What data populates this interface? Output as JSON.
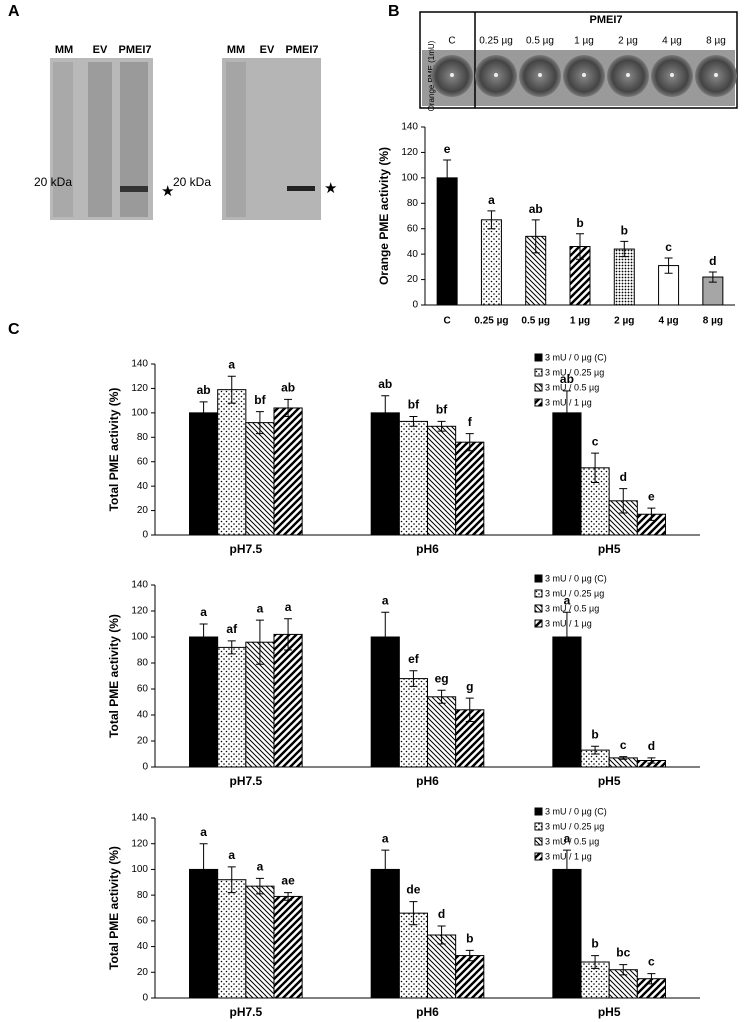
{
  "panel_labels": [
    "A",
    "B",
    "C"
  ],
  "gels": [
    {
      "lanes": [
        "MM",
        "EV",
        "PMEI7"
      ],
      "marker": "20 kDa",
      "star": "★"
    },
    {
      "lanes": [
        "MM",
        "EV",
        "PMEI7"
      ],
      "marker": "20 kDa",
      "star": "★"
    }
  ],
  "plate": {
    "header": "PMEI7",
    "side_label": "Orange PME (1mU)",
    "wells": [
      "C",
      "0.25 µg",
      "0.5 µg",
      "1 µg",
      "2 µg",
      "4 µg",
      "8 µg"
    ]
  },
  "chart_data": [
    {
      "type": "bar",
      "ylabel": "Orange PME activity (%)",
      "categories": [
        "C",
        "0.25 µg",
        "0.5 µg",
        "1 µg",
        "2 µg",
        "4 µg",
        "8 µg"
      ],
      "values": [
        100,
        67,
        54,
        46,
        44,
        31,
        22
      ],
      "errors": [
        14,
        7,
        13,
        10,
        6,
        6,
        4
      ],
      "letters": [
        "e",
        "a",
        "ab",
        "b",
        "b",
        "c",
        "d"
      ],
      "fills": [
        "#000000",
        "dots",
        "hatch-back",
        "hatch-bold",
        "dense-dots",
        "#ffffff",
        "#a6a6a6"
      ],
      "ylim": [
        0,
        140
      ],
      "yticks": [
        0,
        20,
        40,
        60,
        80,
        100,
        120,
        140
      ]
    },
    {
      "type": "grouped-bar",
      "ylabel": "Total PME activity (%)",
      "legend": "upper right",
      "categories": [
        "pH7.5",
        "pH6",
        "pH5"
      ],
      "series": [
        {
          "name": "3 mU / 0 µg (C)",
          "fill": "#000000",
          "values": [
            100,
            100,
            100
          ],
          "errors": [
            9,
            14,
            18
          ],
          "letters": [
            "ab",
            "ab",
            "ab"
          ]
        },
        {
          "name": "3 mU / 0.25 µg",
          "fill": "dots",
          "values": [
            119,
            93,
            55
          ],
          "errors": [
            11,
            4,
            12
          ],
          "letters": [
            "a",
            "bf",
            "c"
          ]
        },
        {
          "name": "3 mU / 0.5 µg",
          "fill": "hatch-back",
          "values": [
            92,
            89,
            28
          ],
          "errors": [
            9,
            4,
            10
          ],
          "letters": [
            "bf",
            "bf",
            "d"
          ]
        },
        {
          "name": "3 mU / 1 µg",
          "fill": "hatch-bold",
          "values": [
            104,
            76,
            17
          ],
          "errors": [
            7,
            7,
            5
          ],
          "letters": [
            "ab",
            "f",
            "e"
          ]
        }
      ],
      "ylim": [
        0,
        140
      ],
      "yticks": [
        0,
        20,
        40,
        60,
        80,
        100,
        120,
        140
      ]
    },
    {
      "type": "grouped-bar",
      "ylabel": "Total PME activity (%)",
      "legend": "upper right",
      "categories": [
        "pH7.5",
        "pH6",
        "pH5"
      ],
      "series": [
        {
          "name": "3 mU / 0 µg (C)",
          "fill": "#000000",
          "values": [
            100,
            100,
            100
          ],
          "errors": [
            10,
            19,
            19
          ],
          "letters": [
            "a",
            "a",
            "a"
          ]
        },
        {
          "name": "3 mU / 0.25 µg",
          "fill": "dots",
          "values": [
            92,
            68,
            13
          ],
          "errors": [
            5,
            6,
            3
          ],
          "letters": [
            "af",
            "ef",
            "b"
          ]
        },
        {
          "name": "3 mU / 0.5 µg",
          "fill": "hatch-back",
          "values": [
            96,
            54,
            7
          ],
          "errors": [
            17,
            5,
            1
          ],
          "letters": [
            "a",
            "eg",
            "c"
          ]
        },
        {
          "name": "3 mU / 1 µg",
          "fill": "hatch-bold",
          "values": [
            102,
            44,
            5
          ],
          "errors": [
            12,
            9,
            2
          ],
          "letters": [
            "a",
            "g",
            "d"
          ]
        }
      ],
      "ylim": [
        0,
        140
      ],
      "yticks": [
        0,
        20,
        40,
        60,
        80,
        100,
        120,
        140
      ]
    },
    {
      "type": "grouped-bar",
      "ylabel": "Total PME activity (%)",
      "legend": "upper right",
      "categories": [
        "pH7.5",
        "pH6",
        "pH5"
      ],
      "series": [
        {
          "name": "3 mU / 0 µg (C)",
          "fill": "#000000",
          "values": [
            100,
            100,
            100
          ],
          "errors": [
            20,
            15,
            15
          ],
          "letters": [
            "a",
            "a",
            "a"
          ]
        },
        {
          "name": "3 mU / 0.25 µg",
          "fill": "dots",
          "values": [
            92,
            66,
            28
          ],
          "errors": [
            10,
            9,
            5
          ],
          "letters": [
            "a",
            "de",
            "b"
          ]
        },
        {
          "name": "3 mU / 0.5 µg",
          "fill": "hatch-back",
          "values": [
            87,
            49,
            22
          ],
          "errors": [
            6,
            7,
            4
          ],
          "letters": [
            "a",
            "d",
            "bc"
          ]
        },
        {
          "name": "3 mU / 1 µg",
          "fill": "hatch-bold",
          "values": [
            79,
            33,
            15
          ],
          "errors": [
            3,
            4,
            4
          ],
          "letters": [
            "ae",
            "b",
            "c"
          ]
        }
      ],
      "ylim": [
        0,
        140
      ],
      "yticks": [
        0,
        20,
        40,
        60,
        80,
        100,
        120,
        140
      ]
    }
  ]
}
